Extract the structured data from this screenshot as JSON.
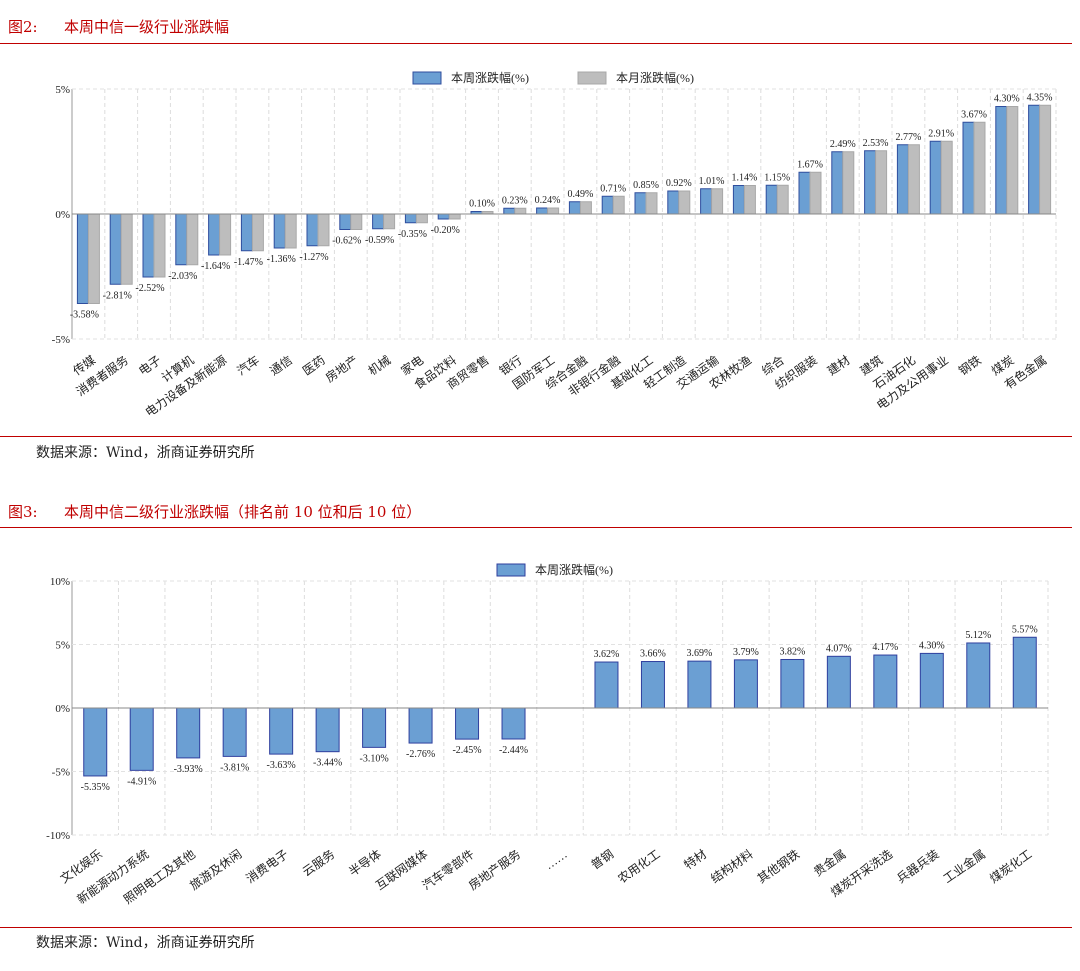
{
  "figures": [
    {
      "number": "图2:",
      "title": "本周中信一级行业涨跌幅",
      "source": "数据来源：Wind，浙商证券研究所"
    },
    {
      "number": "图3:",
      "title": "本周中信二级行业涨跌幅（排名前 10 位和后 10 位）",
      "source": "数据来源：Wind，浙商证券研究所"
    }
  ],
  "chart_data": [
    {
      "type": "bar",
      "title": "",
      "xlabel": "",
      "ylabel": "",
      "ylim": [
        -5,
        5
      ],
      "yticks": [
        "5%",
        "0%",
        "-5%"
      ],
      "yticks_values": [
        5,
        0,
        -5
      ],
      "grid": "vertical dashed",
      "legend": "top-right",
      "colors": {
        "本周涨跌幅(%)": "#6b9fd3",
        "本月涨跌幅(%)": "#bdbdbd",
        "bar_border": "#2f4e9e"
      },
      "categories": [
        "传媒",
        "消费者服务",
        "电子",
        "计算机",
        "电力设备及新能源",
        "汽车",
        "通信",
        "医药",
        "房地产",
        "机械",
        "家电",
        "食品饮料",
        "商贸零售",
        "银行",
        "国防军工",
        "综合金融",
        "非银行金融",
        "基础化工",
        "轻工制造",
        "交通运输",
        "农林牧渔",
        "综合",
        "纺织服装",
        "建材",
        "建筑",
        "石油石化",
        "电力及公用事业",
        "钢铁",
        "煤炭",
        "有色金属"
      ],
      "series": [
        {
          "name": "本周涨跌幅(%)",
          "values": [
            -3.58,
            -2.81,
            -2.52,
            -2.03,
            -1.64,
            -1.47,
            -1.36,
            -1.27,
            -0.62,
            -0.59,
            -0.35,
            -0.2,
            0.1,
            0.23,
            0.24,
            0.49,
            0.71,
            0.85,
            0.92,
            1.01,
            1.14,
            1.15,
            1.67,
            2.49,
            2.53,
            2.77,
            2.91,
            3.67,
            4.3,
            4.35
          ]
        },
        {
          "name": "本月涨跌幅(%)",
          "values": [
            -3.58,
            -2.81,
            -2.52,
            -2.03,
            -1.64,
            -1.47,
            -1.36,
            -1.27,
            -0.62,
            -0.59,
            -0.35,
            -0.2,
            0.1,
            0.23,
            0.24,
            0.49,
            0.71,
            0.85,
            0.92,
            1.01,
            1.14,
            1.15,
            1.67,
            2.49,
            2.53,
            2.77,
            2.91,
            3.67,
            4.3,
            4.35
          ]
        }
      ],
      "data_labels": [
        "-3.58%",
        "-2.81%",
        "-2.52%",
        "-2.03%",
        "-1.64%",
        "-1.47%",
        "-1.36%",
        "-1.27%",
        "-0.62%",
        "-0.59%",
        "-0.35%",
        "-0.20%",
        "0.10%",
        "0.23%",
        "0.24%",
        "0.49%",
        "0.71%",
        "0.85%",
        "0.92%",
        "1.01%",
        "1.14%",
        "1.15%",
        "1.67%",
        "2.49%",
        "2.53%",
        "2.77%",
        "2.91%",
        "3.67%",
        "4.30%",
        "4.35%"
      ]
    },
    {
      "type": "bar",
      "title": "",
      "xlabel": "",
      "ylabel": "",
      "ylim": [
        -10,
        10
      ],
      "yticks": [
        "10%",
        "5%",
        "0%",
        "-5%",
        "-10%"
      ],
      "yticks_values": [
        10,
        5,
        0,
        -5,
        -10
      ],
      "grid": "dashed",
      "legend": "top-center",
      "colors": {
        "本周涨跌幅(%)": "#6b9fd3",
        "bar_border": "#2f3f9e"
      },
      "categories": [
        "文化娱乐",
        "新能源动力系统",
        "照明电工及其他",
        "旅游及休闲",
        "消费电子",
        "云服务",
        "半导体",
        "互联网媒体",
        "汽车零部件",
        "房地产服务",
        "……",
        "普钢",
        "农用化工",
        "特材",
        "结构材料",
        "其他钢铁",
        "贵金属",
        "煤炭开采洗选",
        "兵器兵装",
        "工业金属",
        "煤炭化工"
      ],
      "series": [
        {
          "name": "本周涨跌幅(%)",
          "values": [
            -5.35,
            -4.91,
            -3.93,
            -3.81,
            -3.63,
            -3.44,
            -3.1,
            -2.76,
            -2.45,
            -2.44,
            null,
            3.62,
            3.66,
            3.69,
            3.79,
            3.82,
            4.07,
            4.17,
            4.3,
            5.12,
            5.57
          ]
        }
      ],
      "data_labels": [
        "-5.35%",
        "-4.91%",
        "-3.93%",
        "-3.81%",
        "-3.63%",
        "-3.44%",
        "-3.10%",
        "-2.76%",
        "-2.45%",
        "-2.44%",
        "",
        "3.62%",
        "3.66%",
        "3.69%",
        "3.79%",
        "3.82%",
        "4.07%",
        "4.17%",
        "4.30%",
        "5.12%",
        "5.57%"
      ]
    }
  ]
}
